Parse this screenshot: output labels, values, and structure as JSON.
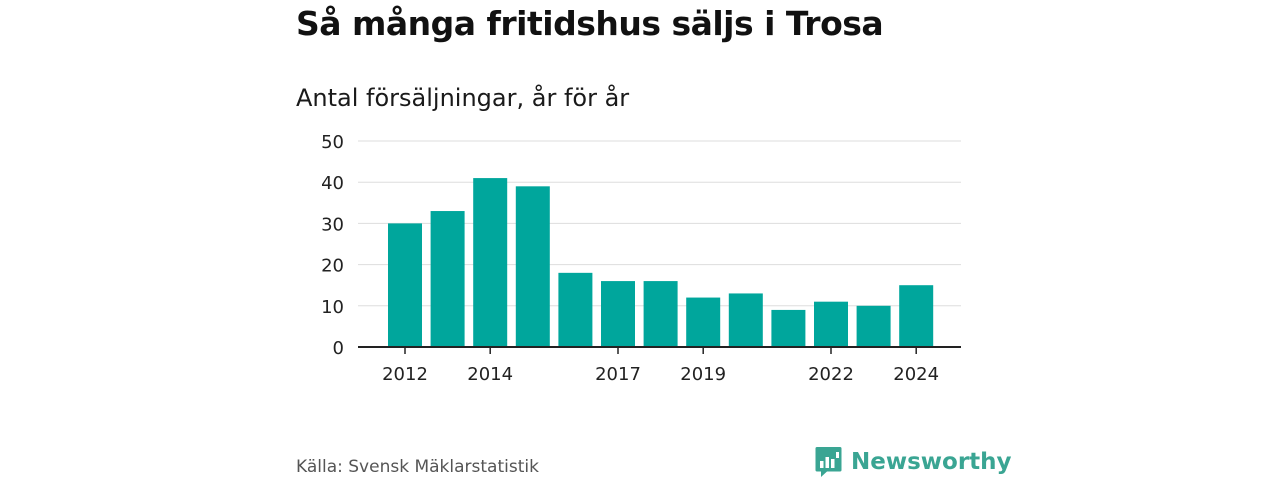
{
  "header": {
    "title": "Så många fritidshus säljs i Trosa",
    "subtitle": "Antal försäljningar, år för år"
  },
  "footer": {
    "source": "Källa: Svensk Mäklarstatistik",
    "brand": "Newsworthy",
    "brand_color": "#3aa593"
  },
  "colors": {
    "bar": "#00a69c",
    "grid": "#dddddd",
    "axis": "#222222"
  },
  "chart_data": {
    "type": "bar",
    "title": "Så många fritidshus säljs i Trosa",
    "subtitle": "Antal försäljningar, år för år",
    "categories": [
      "2012",
      "2013",
      "2014",
      "2015",
      "2016",
      "2017",
      "2018",
      "2019",
      "2020",
      "2021",
      "2022",
      "2023",
      "2024"
    ],
    "values": [
      30,
      33,
      41,
      39,
      18,
      16,
      16,
      12,
      13,
      9,
      11,
      10,
      15
    ],
    "x_tick_labels": [
      "2012",
      "2014",
      "2017",
      "2019",
      "2022",
      "2024"
    ],
    "y_ticks": [
      0,
      10,
      20,
      30,
      40,
      50
    ],
    "ylim": [
      0,
      50
    ],
    "xlabel": "",
    "ylabel": "",
    "grid": true
  }
}
